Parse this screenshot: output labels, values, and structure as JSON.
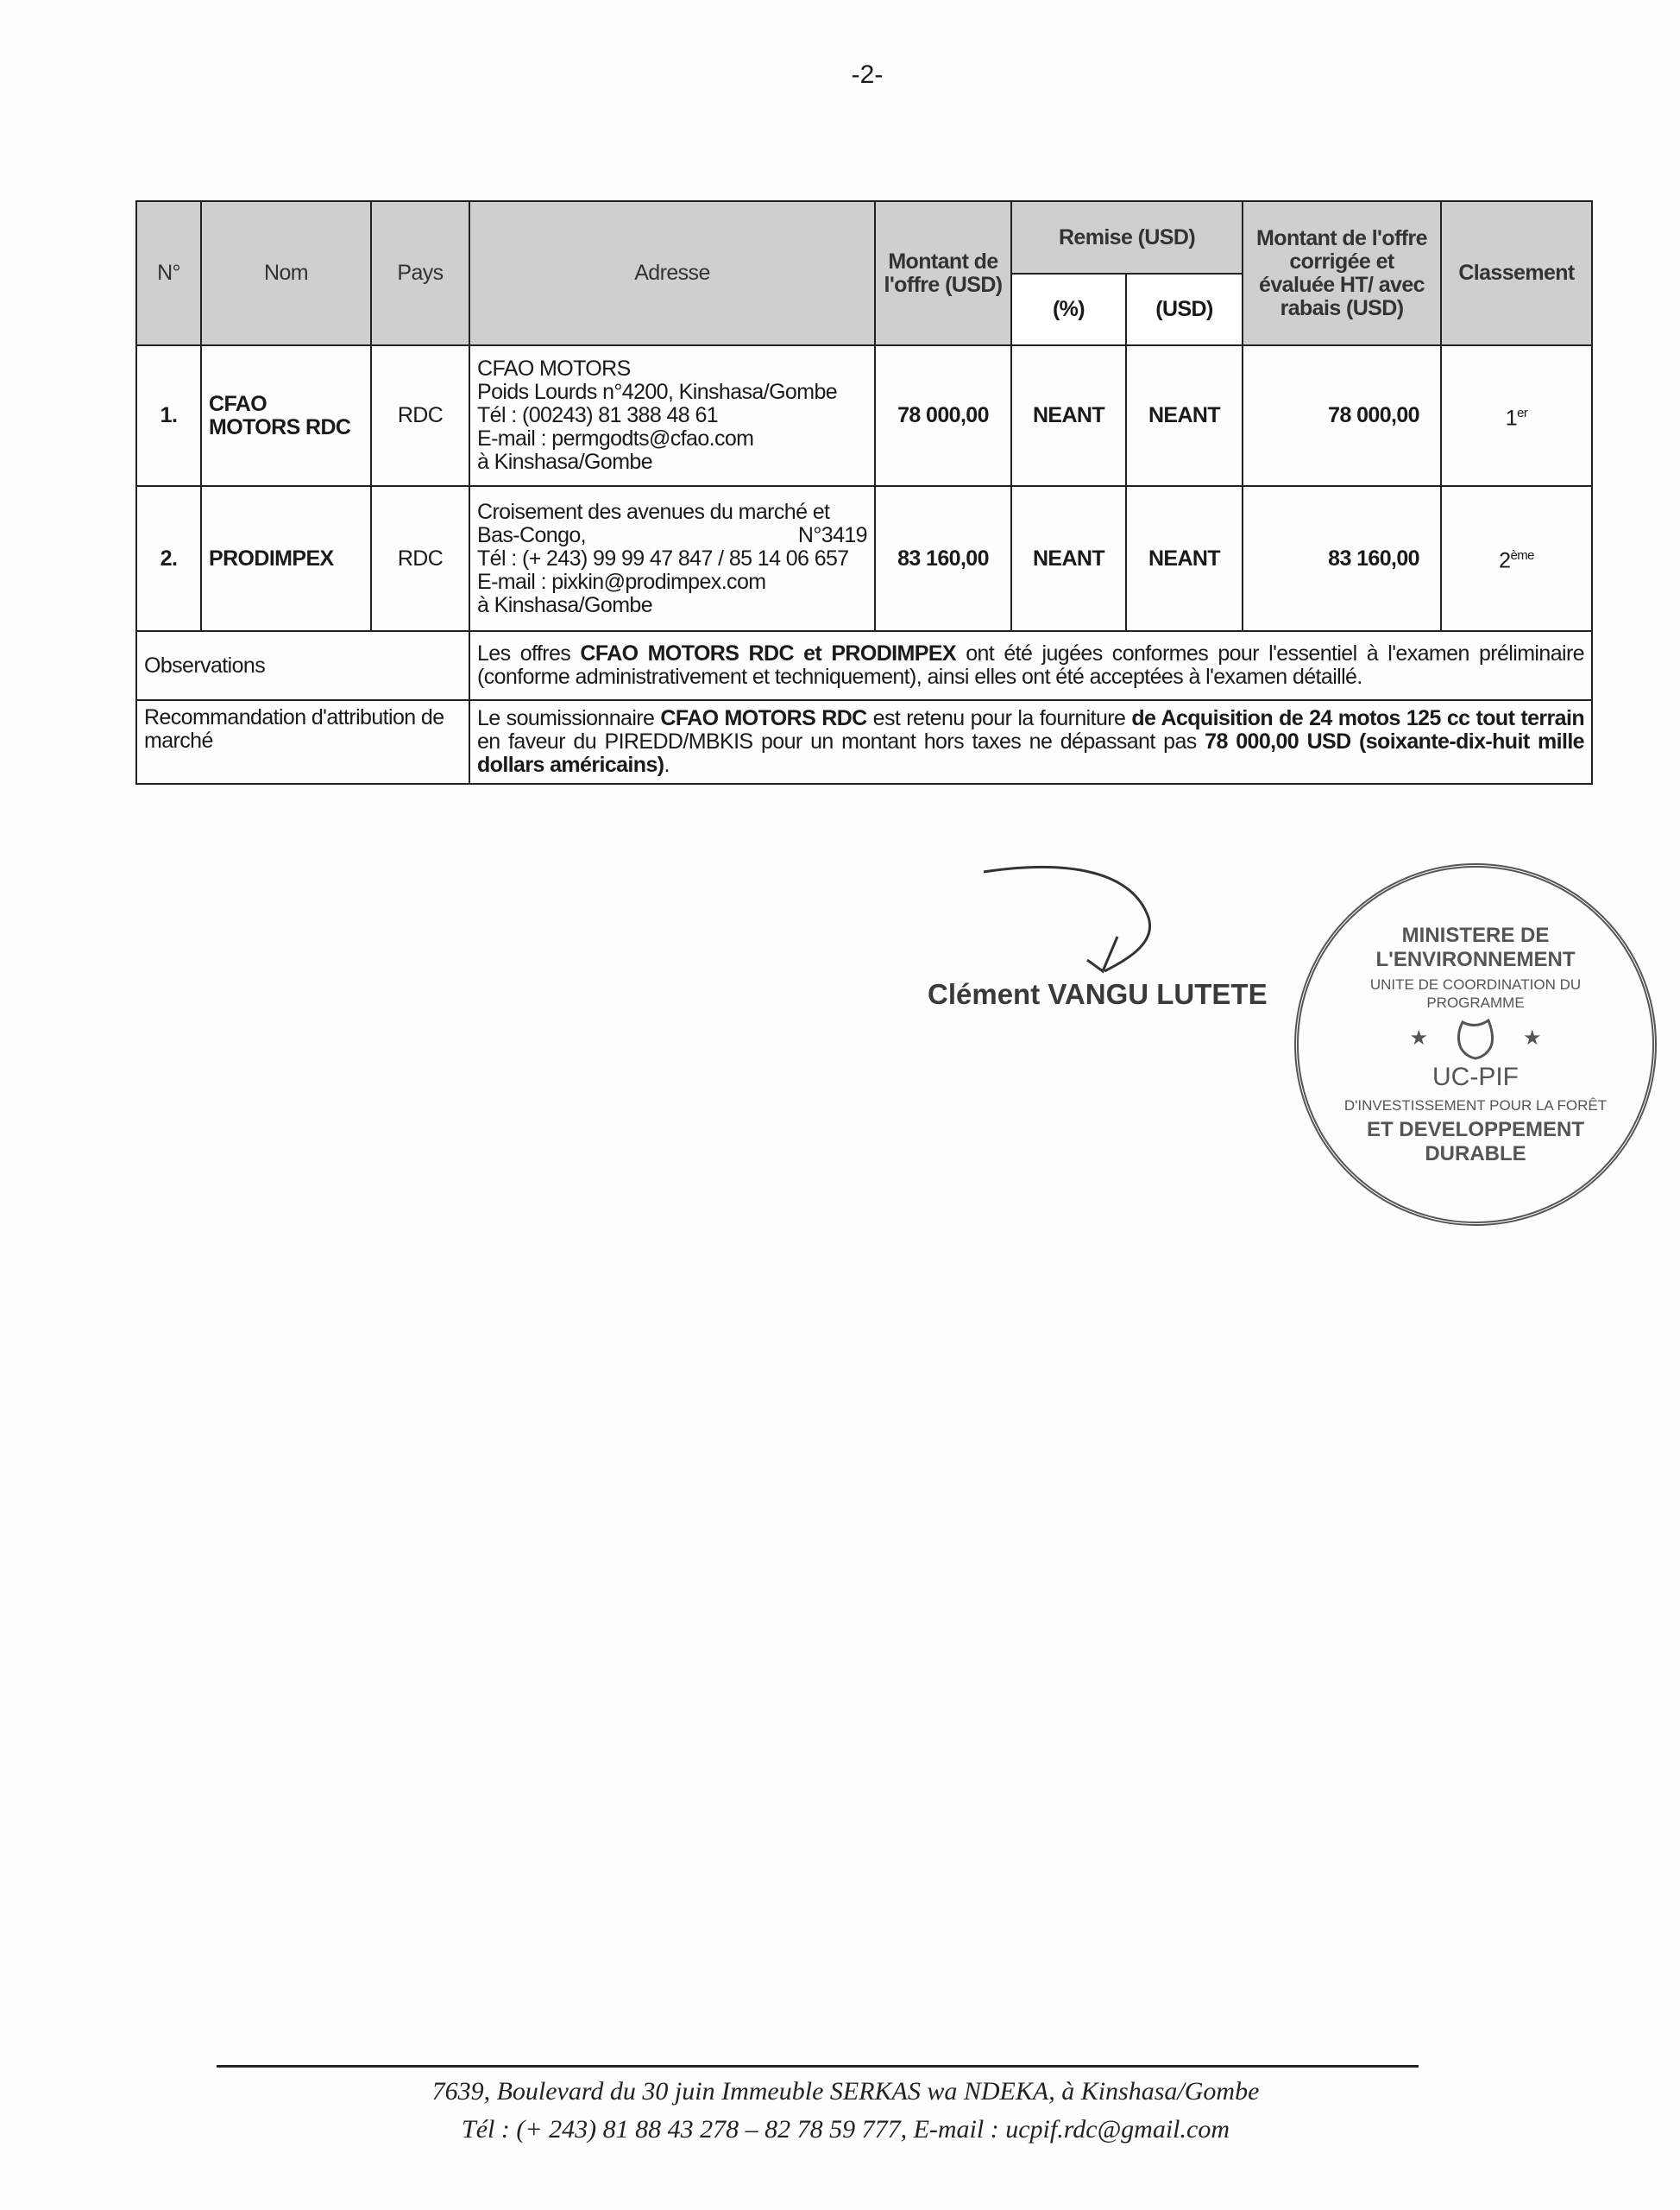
{
  "page_number": "-2-",
  "table": {
    "headers": {
      "no": "N°",
      "nom": "Nom",
      "pays": "Pays",
      "adresse": "Adresse",
      "montant": "Montant de l'offre (USD)",
      "remise": "Remise (USD)",
      "remise_pct": "(%)",
      "remise_usd": "(USD)",
      "montant_corrige": "Montant de l'offre corrigée et évaluée HT/ avec rabais (USD)",
      "classement": "Classement"
    },
    "rows": [
      {
        "no": "1.",
        "nom": "CFAO MOTORS RDC",
        "pays": "RDC",
        "adresse": [
          "CFAO MOTORS",
          "Poids Lourds n°4200, Kinshasa/Gombe",
          "Tél : (00243) 81 388 48 61",
          "E-mail : permgodts@cfao.com",
          "à Kinshasa/Gombe"
        ],
        "montant": "78 000,00",
        "remise_pct": "NEANT",
        "remise_usd": "NEANT",
        "montant_corrige": "78 000,00",
        "classement": "1",
        "classement_sup": "er"
      },
      {
        "no": "2.",
        "nom": "PRODIMPEX",
        "pays": "RDC",
        "adresse": [
          "Croisement des avenues du marché et",
          "Bas-Congo,",
          "N°3419",
          "Tél : (+ 243) 99 99 47 847 / 85 14 06 657",
          "E-mail : pixkin@prodimpex.com",
          "à Kinshasa/Gombe"
        ],
        "montant": "83 160,00",
        "remise_pct": "NEANT",
        "remise_usd": "NEANT",
        "montant_corrige": "83 160,00",
        "classement": "2",
        "classement_sup": "ème"
      }
    ],
    "observations": {
      "label": "Observations",
      "t1": "Les offres ",
      "b1": "CFAO MOTORS RDC et  PRODIMPEX",
      "t2": " ont été jugées conformes pour l'essentiel à l'examen préliminaire (conforme administrativement et techniquement), ainsi elles ont été acceptées à l'examen détaillé."
    },
    "recommandation": {
      "label": "Recommandation d'attribution de marché",
      "t1": "Le soumissionnaire ",
      "b1": "CFAO MOTORS RDC",
      "t2": " est retenu pour la fourniture ",
      "b2": "de Acquisition de 24 motos 125 cc tout terrain",
      "t3": " en faveur du PIREDD/MBKIS pour un montant hors taxes ne dépassant pas ",
      "b3": "78 000,00 USD (soixante-dix-huit mille dollars américains)",
      "t4": "."
    }
  },
  "signature": {
    "name": "Clément VANGU LUTETE"
  },
  "stamp": {
    "outer_top": "MINISTERE DE L'ENVIRONNEMENT",
    "outer_bottom": "ET DEVELOPPEMENT DURABLE",
    "inner_top": "UNITE DE COORDINATION DU PROGRAMME",
    "inner_bottom": "D'INVESTISSEMENT POUR LA FORÊT",
    "center": "UC-PIF",
    "color": "#555555"
  },
  "footer": {
    "line1": "7639, Boulevard du 30 juin Immeuble SERKAS wa NDEKA, à Kinshasa/Gombe",
    "line2": "Tél : (+ 243) 81 88 43 278 – 82 78 59 777, E-mail : ucpif.rdc@gmail.com"
  }
}
